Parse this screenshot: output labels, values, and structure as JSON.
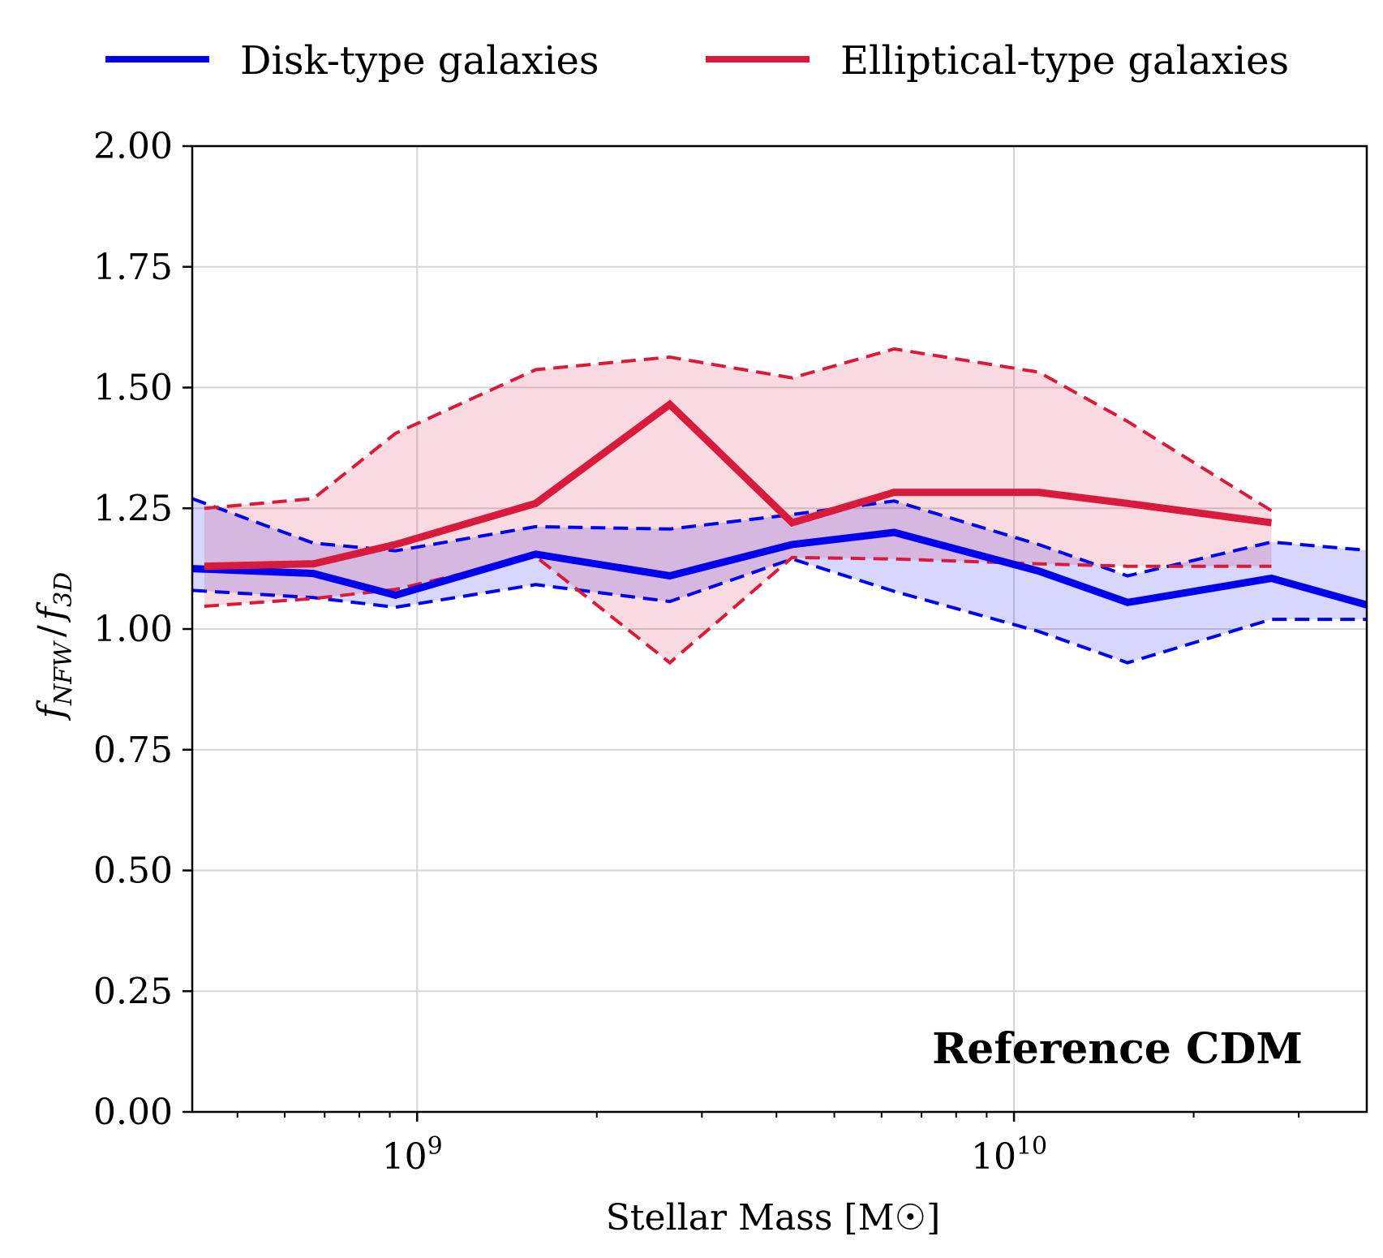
{
  "chart_data": {
    "type": "line",
    "xscale": "log",
    "xlim": [
      420000000,
      39000000000
    ],
    "ylim": [
      0,
      2.0
    ],
    "grid": true,
    "xlabel": "Stellar Mass [M☉]",
    "ylabel": "f_NFW / f_3D",
    "ylabel_parts": {
      "f": "f",
      "sub1": "NFW",
      "slash": "/",
      "sub2": "3D"
    },
    "annotation": "Reference CDM",
    "legend": {
      "placement": "top",
      "entries": [
        "Disk-type galaxies",
        "Elliptical-type galaxies"
      ]
    },
    "xticks": [
      {
        "value": 1000000000,
        "base": "10",
        "exp": "9"
      },
      {
        "value": 10000000000,
        "base": "10",
        "exp": "10"
      }
    ],
    "yticks": [
      "0.00",
      "0.25",
      "0.50",
      "0.75",
      "1.00",
      "1.25",
      "1.50",
      "1.75",
      "2.00"
    ],
    "series": [
      {
        "name": "Disk-type galaxies",
        "color": "#0000ee",
        "fill": "rgba(0,0,255,0.16)",
        "x": [
          420000000,
          670000000,
          920000000,
          1580000000,
          2650000000,
          4250000000,
          6300000000,
          11000000000,
          15500000000,
          27000000000,
          39000000000
        ],
        "median": [
          1.125,
          1.115,
          1.07,
          1.155,
          1.11,
          1.175,
          1.2,
          1.12,
          1.055,
          1.105,
          1.05
        ],
        "upper": [
          1.27,
          1.178,
          1.162,
          1.212,
          1.207,
          1.237,
          1.265,
          1.175,
          1.11,
          1.18,
          1.163
        ],
        "lower": [
          1.08,
          1.065,
          1.045,
          1.092,
          1.057,
          1.145,
          1.078,
          0.995,
          0.93,
          1.02,
          1.02
        ]
      },
      {
        "name": "Elliptical-type galaxies",
        "color": "#d81b3c",
        "fill": "rgba(216,27,60,0.16)",
        "x": [
          440000000,
          670000000,
          920000000,
          1580000000,
          2650000000,
          4250000000,
          6300000000,
          11000000000,
          15500000000,
          27000000000
        ],
        "median": [
          1.13,
          1.135,
          1.175,
          1.26,
          1.465,
          1.22,
          1.283,
          1.283,
          1.26,
          1.22
        ],
        "upper": [
          1.25,
          1.27,
          1.405,
          1.537,
          1.563,
          1.52,
          1.58,
          1.532,
          1.43,
          1.245
        ],
        "lower": [
          1.047,
          1.063,
          1.082,
          1.15,
          0.93,
          1.148,
          1.145,
          1.135,
          1.13,
          1.13
        ]
      }
    ]
  }
}
